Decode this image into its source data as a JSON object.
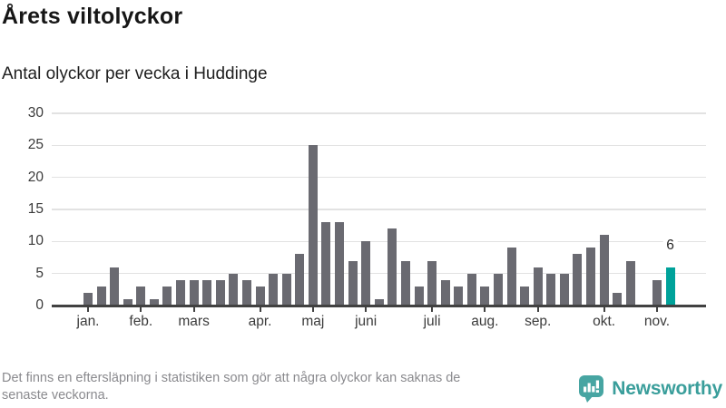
{
  "header": {
    "title": "Årets viltolyckor",
    "subtitle": "Antal olyckor per vecka i Huddinge"
  },
  "footer": {
    "line1": "Det finns en eftersläpning i statistiken som gör att några olyckor kan saknas de",
    "line2": "senaste veckorna."
  },
  "branding": {
    "name": "Newsworthy",
    "icon": "newsworthy-speech-bubble-bar-chart-icon"
  },
  "colors": {
    "bar": "#6a6a71",
    "highlight": "#00a29a",
    "brand": "#3a9e9b",
    "grid": "#e2e2e2",
    "axis": "#414141",
    "title": "#161616",
    "subtitle": "#1e1e1e",
    "label": "#3b3b3b",
    "footer": "#8a8a8e"
  },
  "chart_data": {
    "type": "bar",
    "title": "Årets viltolyckor",
    "subtitle": "Antal olyckor per vecka i Huddinge",
    "x_unit": "vecka",
    "values": [
      2,
      3,
      6,
      1,
      3,
      1,
      3,
      4,
      4,
      4,
      4,
      5,
      4,
      3,
      5,
      5,
      8,
      25,
      13,
      13,
      7,
      10,
      1,
      12,
      7,
      3,
      7,
      4,
      3,
      5,
      3,
      5,
      9,
      3,
      6,
      5,
      5,
      8,
      9,
      11,
      2,
      7,
      0,
      4,
      6
    ],
    "highlight_index": 44,
    "annotation": {
      "index": 44,
      "text": "6"
    },
    "yticks": [
      0,
      5,
      10,
      15,
      20,
      25,
      30
    ],
    "ylim": [
      0,
      30
    ],
    "grid": true,
    "legend": "none",
    "month_ticks": [
      {
        "label": "jan.",
        "index": 0
      },
      {
        "label": "feb.",
        "index": 4
      },
      {
        "label": "mars",
        "index": 8
      },
      {
        "label": "apr.",
        "index": 13
      },
      {
        "label": "maj",
        "index": 17
      },
      {
        "label": "juni",
        "index": 21
      },
      {
        "label": "juli",
        "index": 26
      },
      {
        "label": "aug.",
        "index": 30
      },
      {
        "label": "sep.",
        "index": 34
      },
      {
        "label": "okt.",
        "index": 39
      },
      {
        "label": "nov.",
        "index": 43
      }
    ]
  }
}
